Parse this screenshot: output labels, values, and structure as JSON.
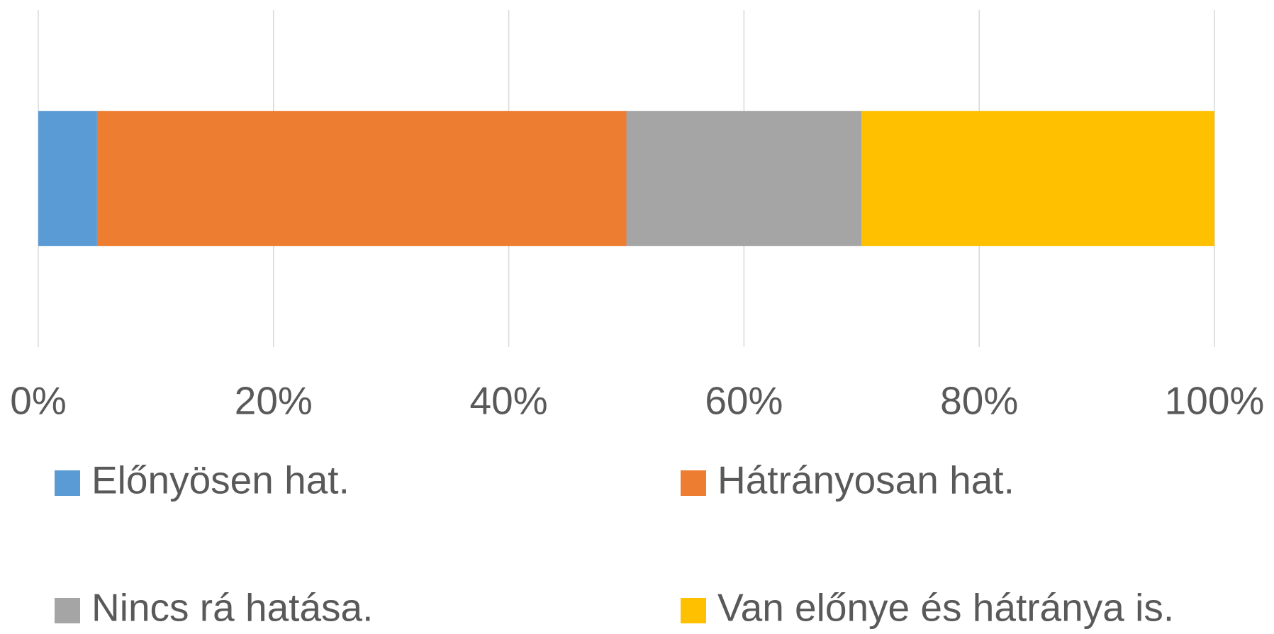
{
  "chart_data": {
    "type": "stacked_bar_horizontal",
    "categories": [
      null
    ],
    "series": [
      {
        "name": "Előnyösen hat.",
        "color": "#5b9bd5",
        "values": [
          5
        ]
      },
      {
        "name": "Hátrányosan hat.",
        "color": "#ed7d31",
        "values": [
          45
        ]
      },
      {
        "name": "Nincs rá hatása.",
        "color": "#a5a5a5",
        "values": [
          20
        ]
      },
      {
        "name": "Van előnye és hátránya is.",
        "color": "#ffc000",
        "values": [
          30
        ]
      }
    ],
    "xlim": [
      0,
      100
    ],
    "xticks": [
      {
        "value": 0,
        "label": "0%"
      },
      {
        "value": 20,
        "label": "20%"
      },
      {
        "value": 40,
        "label": "40%"
      },
      {
        "value": 60,
        "label": "60%"
      },
      {
        "value": 80,
        "label": "80%"
      },
      {
        "value": 100,
        "label": "100%"
      }
    ],
    "grid": true,
    "legend": "bottom"
  }
}
